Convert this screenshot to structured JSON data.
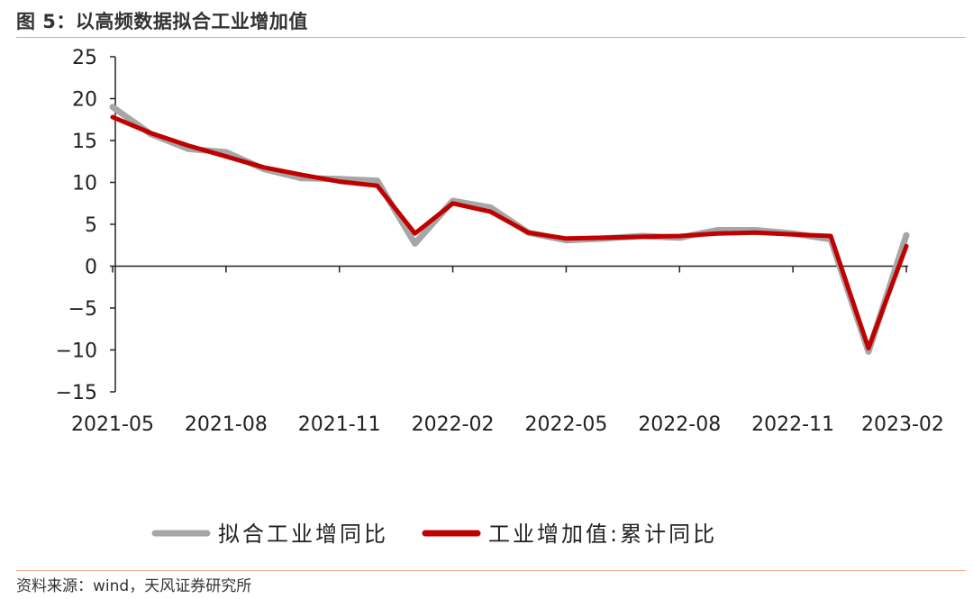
{
  "header": {
    "title": "图 5：以高频数据拟合工业增加值"
  },
  "footer": {
    "source": "资料来源：wind，天风证券研究所"
  },
  "chart_data": {
    "type": "line",
    "x": [
      "2021-05",
      "2021-06",
      "2021-07",
      "2021-08",
      "2021-09",
      "2021-10",
      "2021-11",
      "2021-12",
      "2022-01",
      "2022-02",
      "2022-03",
      "2022-04",
      "2022-05",
      "2022-06",
      "2022-07",
      "2022-08",
      "2022-09",
      "2022-10",
      "2022-11",
      "2022-12",
      "2023-01",
      "2023-02"
    ],
    "x_tick_labels": [
      "2021-05",
      "2021-08",
      "2021-11",
      "2022-02",
      "2022-05",
      "2022-08",
      "2022-11",
      "2023-02"
    ],
    "ylim": [
      -15,
      25
    ],
    "y_ticks": [
      25,
      20,
      15,
      10,
      5,
      0,
      -5,
      -10,
      -15
    ],
    "y_tick_labels": [
      "25",
      "20",
      "15",
      "10",
      "5",
      "0",
      "−5",
      "−10",
      "−15"
    ],
    "series": [
      {
        "name": "拟合工业增同比",
        "color": "#a6a6a6",
        "values": [
          19.0,
          15.8,
          14.0,
          13.6,
          11.6,
          10.5,
          10.4,
          10.2,
          2.7,
          7.8,
          7.0,
          4.0,
          3.1,
          3.3,
          3.6,
          3.4,
          4.3,
          4.3,
          3.9,
          3.2,
          -10.2,
          3.7
        ]
      },
      {
        "name": "工业增加值:累计同比",
        "color": "#c00000",
        "values": [
          17.8,
          15.9,
          14.4,
          13.1,
          11.8,
          10.9,
          10.1,
          9.6,
          3.9,
          7.5,
          6.5,
          4.0,
          3.3,
          3.4,
          3.5,
          3.6,
          3.9,
          4.0,
          3.8,
          3.6,
          -9.8,
          2.4
        ]
      }
    ],
    "grid": false,
    "legend_position": "bottom"
  }
}
